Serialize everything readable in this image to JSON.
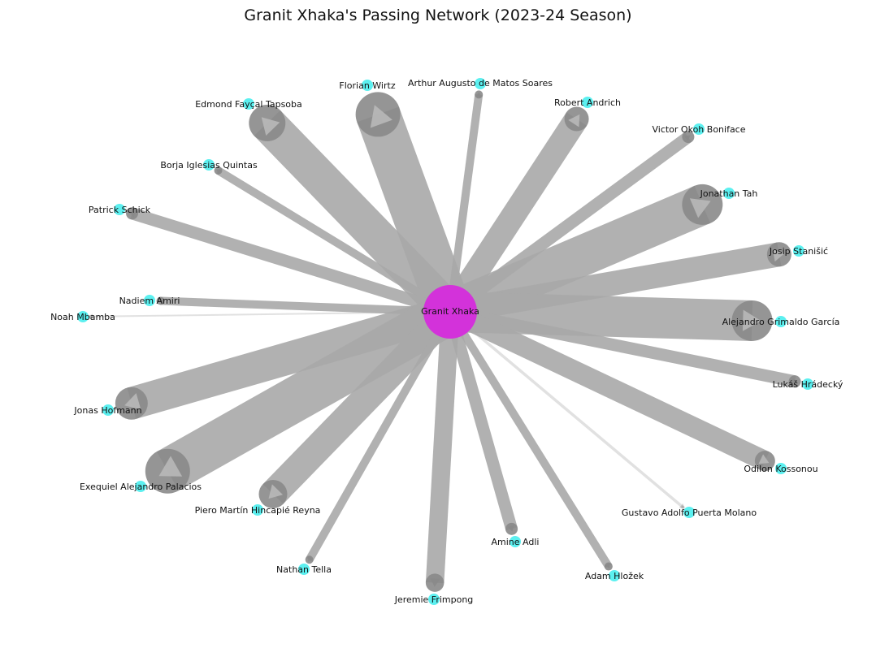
{
  "title": "Granit Xhaka's Passing Network (2023-24 Season)",
  "colors": {
    "center_node": "#d52bdc",
    "player_node": "#5cf0f0",
    "edge": "#a9a9a9",
    "edge_dark": "#8a8a8a"
  },
  "center": {
    "name": "Granit Xhaka"
  },
  "players": [
    {
      "name": "Florian Wirtz",
      "passes": 11
    },
    {
      "name": "Arthur Augusto de Matos Soares",
      "passes": 2
    },
    {
      "name": "Robert Andrich",
      "passes": 6
    },
    {
      "name": "Edmond Fayçal Tapsoba",
      "passes": 9
    },
    {
      "name": "Victor Okoh Boniface",
      "passes": 3
    },
    {
      "name": "Borja Iglesias Quintas",
      "passes": 2
    },
    {
      "name": "Jonathan Tah",
      "passes": 10
    },
    {
      "name": "Patrick Schick",
      "passes": 3
    },
    {
      "name": "Josip Stanišić",
      "passes": 6
    },
    {
      "name": "Nadiem Amiri",
      "passes": 2
    },
    {
      "name": "Noah Mbamba",
      "passes": 0.4
    },
    {
      "name": "Alejandro Grimaldo García",
      "passes": 10
    },
    {
      "name": "Lukáš Hrádecký",
      "passes": 3
    },
    {
      "name": "Jonas Hofmann",
      "passes": 8
    },
    {
      "name": "Exequiel Alejandro Palacios",
      "passes": 11
    },
    {
      "name": "Odilon Kossonou",
      "passes": 5
    },
    {
      "name": "Piero Martín Hincapié Reyna",
      "passes": 7
    },
    {
      "name": "Gustavo Adolfo Puerta Molano",
      "passes": 0.7
    },
    {
      "name": "Nathan Tella",
      "passes": 2
    },
    {
      "name": "Amine Adli",
      "passes": 3
    },
    {
      "name": "Adam Hložek",
      "passes": 2
    },
    {
      "name": "Jeremie Frimpong",
      "passes": 4.5
    }
  ]
}
